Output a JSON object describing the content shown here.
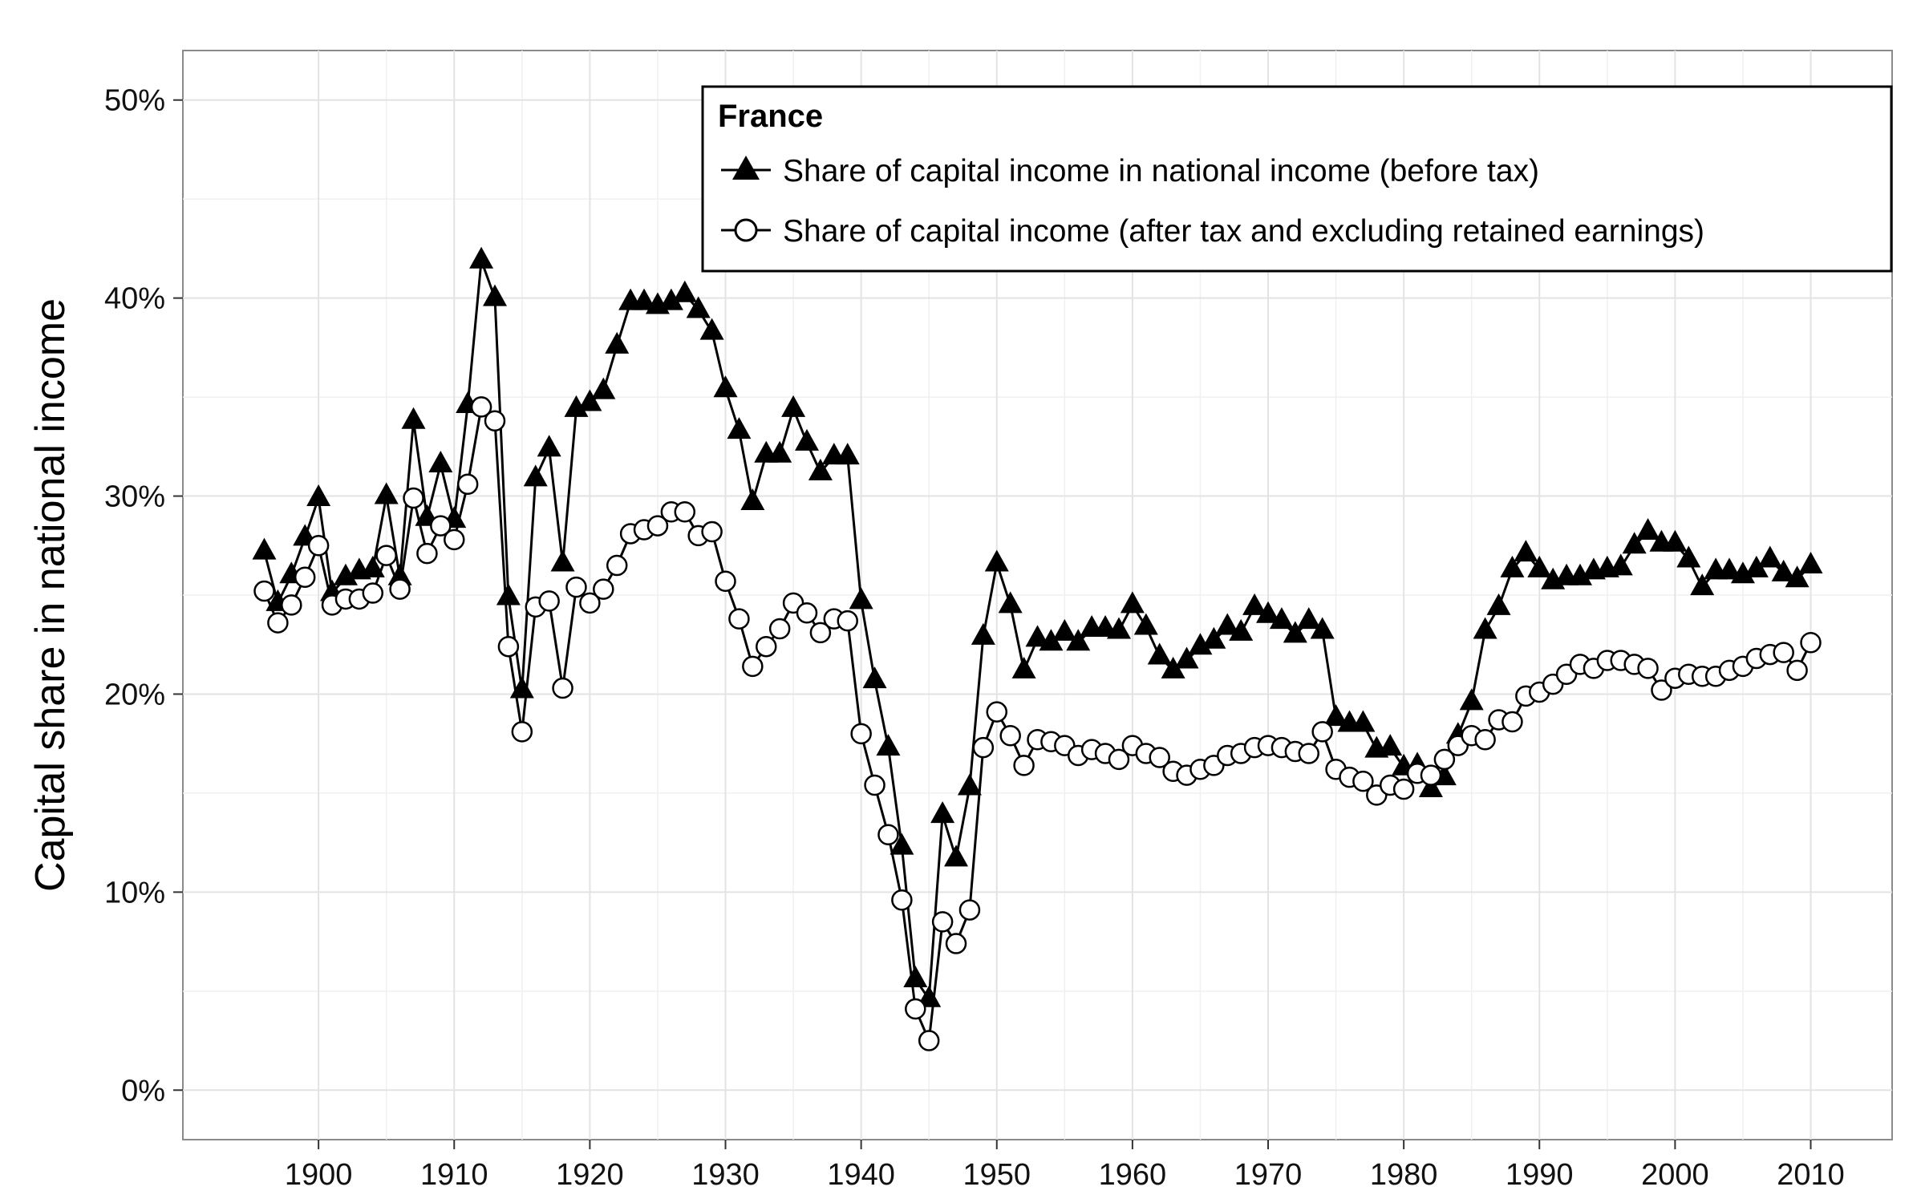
{
  "chart_data": {
    "type": "line",
    "xlabel": "",
    "ylabel": "Capital share in national income",
    "xlim": [
      1890,
      2016
    ],
    "ylim": [
      -2.5,
      52.5
    ],
    "x_ticks": [
      1900,
      1910,
      1920,
      1930,
      1940,
      1950,
      1960,
      1970,
      1980,
      1990,
      2000,
      2010
    ],
    "y_ticks": [
      0,
      10,
      20,
      30,
      40,
      50
    ],
    "y_tick_labels": [
      "0%",
      "10%",
      "20%",
      "30%",
      "40%",
      "50%"
    ],
    "grid": true,
    "legend_placement": "top-right",
    "legend_title": "France",
    "series": [
      {
        "name": "Share of capital income in national income (before tax)",
        "marker": "filled-triangle",
        "x": [
          1896,
          1897,
          1898,
          1899,
          1900,
          1901,
          1902,
          1903,
          1904,
          1905,
          1906,
          1907,
          1908,
          1909,
          1910,
          1911,
          1912,
          1913,
          1914,
          1915,
          1916,
          1917,
          1918,
          1919,
          1920,
          1921,
          1922,
          1923,
          1924,
          1925,
          1926,
          1927,
          1928,
          1929,
          1930,
          1931,
          1932,
          1933,
          1934,
          1935,
          1936,
          1937,
          1938,
          1939,
          1940,
          1941,
          1942,
          1943,
          1944,
          1945,
          1946,
          1947,
          1948,
          1949,
          1950,
          1951,
          1952,
          1953,
          1954,
          1955,
          1956,
          1957,
          1958,
          1959,
          1960,
          1961,
          1962,
          1963,
          1964,
          1965,
          1966,
          1967,
          1968,
          1969,
          1970,
          1971,
          1972,
          1973,
          1974,
          1975,
          1976,
          1977,
          1978,
          1979,
          1980,
          1981,
          1982,
          1983,
          1984,
          1985,
          1986,
          1987,
          1988,
          1989,
          1990,
          1991,
          1992,
          1993,
          1994,
          1995,
          1996,
          1997,
          1998,
          1999,
          2000,
          2001,
          2002,
          2003,
          2004,
          2005,
          2006,
          2007,
          2008,
          2009,
          2010
        ],
        "values": [
          27.2,
          24.6,
          26.0,
          27.9,
          29.9,
          25.1,
          25.9,
          26.2,
          26.3,
          30.0,
          25.9,
          33.8,
          28.9,
          31.6,
          28.8,
          34.6,
          41.9,
          40.0,
          24.9,
          20.2,
          30.9,
          32.4,
          26.6,
          34.4,
          34.7,
          35.3,
          37.6,
          39.8,
          39.8,
          39.6,
          39.8,
          40.2,
          39.4,
          38.3,
          35.4,
          33.3,
          29.7,
          32.1,
          32.1,
          34.4,
          32.7,
          31.2,
          32.0,
          32.0,
          24.7,
          20.7,
          17.3,
          12.3,
          5.6,
          4.6,
          13.9,
          11.7,
          15.3,
          22.9,
          26.6,
          24.5,
          21.2,
          22.8,
          22.6,
          23.1,
          22.6,
          23.3,
          23.3,
          23.2,
          24.5,
          23.4,
          21.9,
          21.2,
          21.7,
          22.4,
          22.7,
          23.4,
          23.1,
          24.4,
          24.0,
          23.7,
          23.0,
          23.7,
          23.2,
          18.8,
          18.5,
          18.5,
          17.2,
          17.3,
          16.3,
          16.4,
          15.2,
          15.8,
          17.9,
          19.6,
          23.2,
          24.4,
          26.3,
          27.1,
          26.3,
          25.7,
          25.9,
          25.9,
          26.2,
          26.3,
          26.4,
          27.5,
          28.2,
          27.6,
          27.6,
          26.8,
          25.4,
          26.2,
          26.2,
          26.0,
          26.3,
          26.8,
          26.1,
          25.8,
          26.5
        ]
      },
      {
        "name": "Share of capital income (after tax and excluding retained earnings)",
        "marker": "open-circle",
        "x": [
          1896,
          1897,
          1898,
          1899,
          1900,
          1901,
          1902,
          1903,
          1904,
          1905,
          1906,
          1907,
          1908,
          1909,
          1910,
          1911,
          1912,
          1913,
          1914,
          1915,
          1916,
          1917,
          1918,
          1919,
          1920,
          1921,
          1922,
          1923,
          1924,
          1925,
          1926,
          1927,
          1928,
          1929,
          1930,
          1931,
          1932,
          1933,
          1934,
          1935,
          1936,
          1937,
          1938,
          1939,
          1940,
          1941,
          1942,
          1943,
          1944,
          1945,
          1946,
          1947,
          1948,
          1949,
          1950,
          1951,
          1952,
          1953,
          1954,
          1955,
          1956,
          1957,
          1958,
          1959,
          1960,
          1961,
          1962,
          1963,
          1964,
          1965,
          1966,
          1967,
          1968,
          1969,
          1970,
          1971,
          1972,
          1973,
          1974,
          1975,
          1976,
          1977,
          1978,
          1979,
          1980,
          1981,
          1982,
          1983,
          1984,
          1985,
          1986,
          1987,
          1988,
          1989,
          1990,
          1991,
          1992,
          1993,
          1994,
          1995,
          1996,
          1997,
          1998,
          1999,
          2000,
          2001,
          2002,
          2003,
          2004,
          2005,
          2006,
          2007,
          2008,
          2009,
          2010
        ],
        "values": [
          25.2,
          23.6,
          24.5,
          25.9,
          27.5,
          24.5,
          24.8,
          24.8,
          25.1,
          27.0,
          25.3,
          29.9,
          27.1,
          28.5,
          27.8,
          30.6,
          34.5,
          33.8,
          22.4,
          18.1,
          24.4,
          24.7,
          20.3,
          25.4,
          24.6,
          25.3,
          26.5,
          28.1,
          28.3,
          28.5,
          29.2,
          29.2,
          28.0,
          28.2,
          25.7,
          23.8,
          21.4,
          22.4,
          23.3,
          24.6,
          24.1,
          23.1,
          23.8,
          23.7,
          18.0,
          15.4,
          12.9,
          9.6,
          4.1,
          2.5,
          8.5,
          7.4,
          9.1,
          17.3,
          19.1,
          17.9,
          16.4,
          17.7,
          17.6,
          17.4,
          16.9,
          17.2,
          17.0,
          16.7,
          17.4,
          17.0,
          16.8,
          16.1,
          15.9,
          16.2,
          16.4,
          16.9,
          17.0,
          17.3,
          17.4,
          17.3,
          17.1,
          17.0,
          18.1,
          16.2,
          15.8,
          15.6,
          14.9,
          15.4,
          15.2,
          16.0,
          15.9,
          16.7,
          17.4,
          17.9,
          17.7,
          18.7,
          18.6,
          19.9,
          20.1,
          20.5,
          21.0,
          21.5,
          21.3,
          21.7,
          21.7,
          21.5,
          21.3,
          20.2,
          20.8,
          21.0,
          20.9,
          20.9,
          21.2,
          21.4,
          21.8,
          22.0,
          22.1,
          21.2,
          22.6
        ]
      }
    ]
  }
}
